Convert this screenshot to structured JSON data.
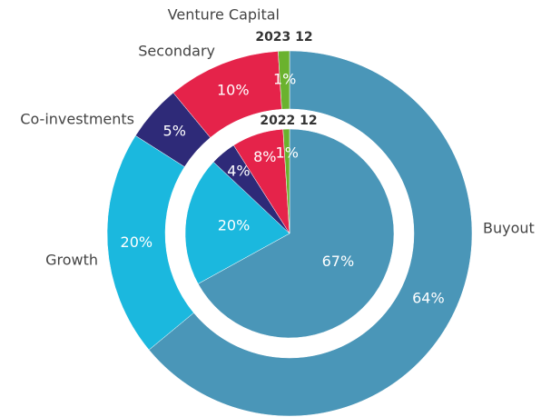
{
  "chart_data": {
    "type": "pie",
    "categories": [
      "Buyout",
      "Growth",
      "Co-investments",
      "Secondary",
      "Venture Capital"
    ],
    "colors": [
      "#4a96b8",
      "#1bb8de",
      "#2e2a78",
      "#e5234a",
      "#6ab22e"
    ],
    "series": [
      {
        "name": "2023 12",
        "values": [
          64,
          20,
          5,
          10,
          1
        ],
        "value_labels": [
          "64%",
          "20%",
          "5%",
          "10%",
          "1%"
        ]
      },
      {
        "name": "2022 12",
        "values": [
          67,
          20,
          4,
          8,
          1
        ],
        "value_labels": [
          "67%",
          "20%",
          "4%",
          "8%",
          "1%"
        ]
      }
    ]
  }
}
